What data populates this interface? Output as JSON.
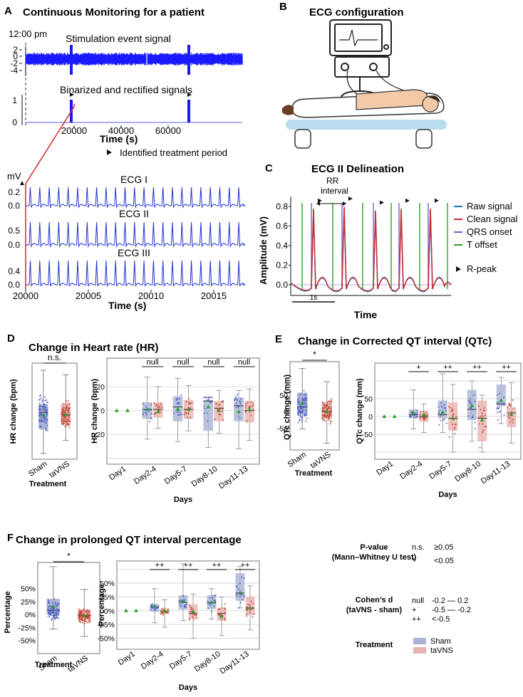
{
  "panel_letters": {
    "a": "A",
    "b": "B",
    "c": "C",
    "d": "D",
    "e": "E",
    "f": "F"
  },
  "colors": {
    "signal_blue": "#1a1aff",
    "ecg_blue": "#2233cc",
    "red_line": "#d62728",
    "sham_box": "#aab3d6",
    "tavns_box": "#e8b4b0",
    "sham_pt": "#4a5bbf",
    "tavns_pt": "#c0392b",
    "mean_marker": "#2ca02c",
    "raw": "#1f77b4",
    "clean": "#d62728",
    "qrs": "#7b5ccf",
    "toff": "#2ca02c"
  },
  "panel_a": {
    "title": "Continuous Monitoring for a patient",
    "clock": "12:00 pm",
    "stim_title": "Stimulation event signal",
    "stim_yticks": [
      "2",
      "0",
      "-2",
      "-4"
    ],
    "bin_title": "Binarized and rectified signals",
    "bin_yticks": [
      "1",
      "0"
    ],
    "xticks": [
      "20000",
      "40000",
      "60000"
    ],
    "xlabel": "Time (s)",
    "legend": "Identified treatment period",
    "ecg_unit": "mV",
    "ecg": [
      {
        "name": "ECG I",
        "yticks": [
          "0.2",
          "0.0"
        ]
      },
      {
        "name": "ECG II",
        "yticks": [
          "0.5",
          "0.0"
        ]
      },
      {
        "name": "ECG III",
        "yticks": [
          "0.4",
          "0.0"
        ]
      }
    ],
    "ecg_xticks": [
      "20000",
      "20005",
      "20010",
      "20015"
    ],
    "ecg_xlabel": "Time (s)"
  },
  "panel_b": {
    "title": "ECG configuration"
  },
  "panel_c": {
    "title": "ECG II Delineation",
    "rr_label": "RR\ninterval",
    "ylabel": "Amplitude (mV)",
    "yticks": [
      "0.8",
      "0.6",
      "0.4",
      "0.2",
      "0.0"
    ],
    "xlabel": "Time",
    "scale": "1s",
    "legend": [
      "Raw signal",
      "Clean signal",
      "QRS onset",
      "T offset",
      "R-peak"
    ]
  },
  "chart_data": [
    {
      "id": "D-overall",
      "type": "box",
      "title": "Change in Heart rate (HR)",
      "xlabel": "Treatment",
      "ylabel": "HR change (bpm)",
      "categories": [
        "Sham",
        "taVNS"
      ],
      "significance": "n.s.",
      "series": [
        {
          "name": "Sham",
          "q1": -12,
          "median": 2,
          "q3": 9,
          "whisker_low": -33,
          "whisker_high": 38,
          "mean": -0.5
        },
        {
          "name": "taVNS",
          "q1": -8,
          "median": 0,
          "q3": 9,
          "whisker_low": -22,
          "whisker_high": 34,
          "mean": 0
        }
      ]
    },
    {
      "id": "D-days",
      "type": "box",
      "xlabel": "Days",
      "ylabel": "HR change (bpm)",
      "categories": [
        "Day1",
        "Day2-4",
        "Day5-7",
        "Day8-10",
        "Day11-13"
      ],
      "yticks": [
        20,
        0,
        -20
      ],
      "annotations": [
        "",
        "null",
        "null",
        "null",
        "null"
      ],
      "series": [
        {
          "name": "Sham",
          "q1": [
            0,
            -7,
            -9,
            -17,
            -9
          ],
          "median": [
            0,
            1,
            3,
            8,
            4
          ],
          "q3": [
            0,
            7,
            12,
            9,
            11
          ],
          "whisker_low": [
            0,
            -24,
            -26,
            -31,
            -32
          ],
          "whisker_high": [
            0,
            28,
            27,
            11,
            17
          ],
          "mean": [
            0,
            1,
            1,
            3,
            -1
          ]
        },
        {
          "name": "taVNS",
          "q1": [
            0,
            -6,
            -7,
            -9,
            -10
          ],
          "median": [
            0,
            1,
            1,
            2,
            0
          ],
          "q3": [
            0,
            7,
            9,
            8,
            8
          ],
          "whisker_low": [
            0,
            -15,
            -17,
            -19,
            -25
          ],
          "whisker_high": [
            0,
            20,
            21,
            17,
            18
          ],
          "mean": [
            0,
            -1,
            1,
            0,
            1
          ]
        }
      ]
    },
    {
      "id": "E-overall",
      "type": "box",
      "title": "Change in Corrected QT interval (QTc)",
      "xlabel": "Treatment",
      "ylabel": "QTc change (mm)",
      "categories": [
        "Sham",
        "taVNS"
      ],
      "yticks": [
        50,
        0,
        -50
      ],
      "significance": "*",
      "series": [
        {
          "name": "Sham",
          "q1": -5,
          "median": 14,
          "q3": 57,
          "whisker_low": -52,
          "whisker_high": 130,
          "mean": 25
        },
        {
          "name": "taVNS",
          "q1": -21,
          "median": 0,
          "q3": 27,
          "whisker_low": -95,
          "whisker_high": 90,
          "mean": 0
        }
      ]
    },
    {
      "id": "E-days",
      "type": "box",
      "xlabel": "Days",
      "ylabel": "QTc change (mm)",
      "categories": [
        "Day1",
        "Day2-4",
        "Day5-7",
        "Day8-10",
        "Day11-13"
      ],
      "yticks": [
        50,
        0,
        -50
      ],
      "annotations": [
        "",
        "+",
        "++",
        "++",
        "++"
      ],
      "series": [
        {
          "name": "Sham",
          "q1": [
            0,
            -5,
            -5,
            -10,
            30
          ],
          "median": [
            0,
            5,
            5,
            20,
            35
          ],
          "q3": [
            0,
            20,
            45,
            75,
            90
          ],
          "whisker_low": [
            0,
            -35,
            -45,
            -70,
            -20
          ],
          "whisker_high": [
            0,
            75,
            120,
            100,
            110
          ],
          "mean": [
            0,
            10,
            12,
            30,
            45
          ]
        },
        {
          "name": "taVNS",
          "q1": [
            0,
            -15,
            -40,
            -70,
            -30
          ],
          "median": [
            0,
            0,
            -5,
            -5,
            10
          ],
          "q3": [
            0,
            15,
            40,
            45,
            25
          ],
          "whisker_low": [
            0,
            -45,
            -100,
            -100,
            -75
          ],
          "whisker_high": [
            0,
            35,
            90,
            60,
            95
          ],
          "mean": [
            0,
            5,
            -5,
            -10,
            5
          ]
        }
      ]
    },
    {
      "id": "F-overall",
      "type": "box",
      "title": "Change in prolonged QT interval percentage",
      "xlabel": "Treatment",
      "ylabel": "Percentage",
      "categories": [
        "Sham",
        "taVNS"
      ],
      "yticks": [
        "50%",
        "25%",
        "0%",
        "-25%",
        "-50%"
      ],
      "significance": "*",
      "series": [
        {
          "name": "Sham",
          "q1": 2,
          "median": 8,
          "q3": 30,
          "whisker_low": -28,
          "whisker_high": 92,
          "mean": 15
        },
        {
          "name": "taVNS",
          "q1": -10,
          "median": -2,
          "q3": 10,
          "whisker_low": -42,
          "whisker_high": 48,
          "mean": -2
        }
      ]
    },
    {
      "id": "F-days",
      "type": "box",
      "xlabel": "Days",
      "ylabel": "Percentage",
      "categories": [
        "Day1",
        "Day2-4",
        "Day5-7",
        "Day8-10",
        "Day11-13"
      ],
      "yticks": [
        "50%",
        "25%",
        "0%",
        "-25%",
        "-50%"
      ],
      "annotations": [
        "",
        "++",
        "++",
        "++",
        "++"
      ],
      "series": [
        {
          "name": "Sham",
          "q1": [
            0,
            -2,
            2,
            3,
            18
          ],
          "median": [
            0,
            6,
            15,
            15,
            32
          ],
          "q3": [
            0,
            12,
            28,
            28,
            68
          ],
          "whisker_low": [
            0,
            -22,
            -18,
            -15,
            5
          ],
          "whisker_high": [
            0,
            40,
            85,
            40,
            80
          ],
          "mean": [
            0,
            8,
            18,
            15,
            32
          ]
        },
        {
          "name": "taVNS",
          "q1": [
            0,
            -5,
            -14,
            -18,
            -8
          ],
          "median": [
            0,
            -2,
            -5,
            -5,
            5
          ],
          "q3": [
            0,
            5,
            12,
            5,
            25
          ],
          "whisker_low": [
            0,
            -30,
            -50,
            -45,
            -35
          ],
          "whisker_high": [
            0,
            20,
            30,
            25,
            45
          ],
          "mean": [
            0,
            0,
            -2,
            -10,
            5
          ]
        }
      ]
    }
  ],
  "legend_box": {
    "pvalue_label": "P-value\n(Mann–Whitney U test)",
    "pvalue_rows": [
      [
        "n.s.",
        "≥0.05"
      ],
      [
        "*",
        "<0.05"
      ]
    ],
    "cohen_label": "Cohen’s d\n(taVNS - sham)",
    "cohen_rows": [
      [
        "null",
        "-0.2 — 0.2"
      ],
      [
        "+",
        "-0.5 — -0.2"
      ],
      [
        "++",
        "<-0.5"
      ]
    ],
    "treatment_label": "Treatment",
    "treatment_rows": [
      "Sham",
      "taVNS"
    ]
  }
}
